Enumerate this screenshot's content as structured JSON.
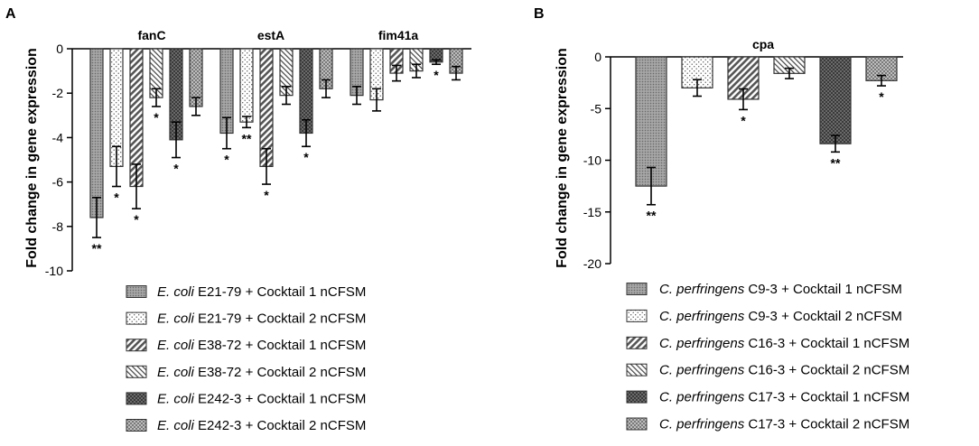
{
  "patterns": {
    "p1": {
      "name": "dense-dots",
      "fill": "#9a9a9a"
    },
    "p2": {
      "name": "sparse-dots",
      "fill": "#ffffff"
    },
    "p3": {
      "name": "thick-diagonal",
      "fill": "#ffffff"
    },
    "p4": {
      "name": "thin-diagonal",
      "fill": "#ffffff"
    },
    "p5": {
      "name": "dark-checker",
      "fill": "#3a3a3a"
    },
    "p6": {
      "name": "light-checker",
      "fill": "#bdbdbd"
    }
  },
  "chart_data": [
    {
      "panel": "A",
      "type": "bar",
      "title": "",
      "xlabel": "",
      "ylabel": "Fold change in gene expression",
      "ylim": [
        -10,
        0
      ],
      "yticks": [
        0,
        -2,
        -4,
        -6,
        -8,
        -10
      ],
      "groups": [
        {
          "label": "fanC",
          "values": [
            -7.6,
            -5.3,
            -6.2,
            -2.2,
            -4.1,
            -2.6
          ],
          "errors": [
            0.9,
            0.9,
            1.0,
            0.4,
            0.8,
            0.4
          ],
          "stars": [
            "**",
            "*",
            "*",
            "*",
            "*",
            ""
          ]
        },
        {
          "label": "estA",
          "values": [
            -3.8,
            -3.3,
            -5.3,
            -2.1,
            -3.8,
            -1.8
          ],
          "errors": [
            0.7,
            0.25,
            0.8,
            0.4,
            0.6,
            0.4
          ],
          "stars": [
            "*",
            "**",
            "*",
            "",
            "*",
            ""
          ]
        },
        {
          "label": "fim41a",
          "values": [
            -2.1,
            -2.3,
            -1.1,
            -1.0,
            -0.6,
            -1.1
          ],
          "errors": [
            0.4,
            0.5,
            0.35,
            0.3,
            0.1,
            0.3
          ],
          "stars": [
            "",
            "",
            "",
            "",
            "*",
            ""
          ]
        }
      ],
      "legend": [
        {
          "italic": "E. coli",
          "text": " E21-79 + Cocktail 1 nCFSM",
          "pattern": "p1"
        },
        {
          "italic": "E. coli",
          "text": " E21-79 + Cocktail 2 nCFSM",
          "pattern": "p2"
        },
        {
          "italic": "E. coli",
          "text": " E38-72 + Cocktail 1 nCFSM",
          "pattern": "p3"
        },
        {
          "italic": "E. coli",
          "text": " E38-72 + Cocktail 2 nCFSM",
          "pattern": "p4"
        },
        {
          "italic": "E. coli",
          "text": " E242-3 + Cocktail 1 nCFSM",
          "pattern": "p5"
        },
        {
          "italic": "E. coli",
          "text": " E242-3 + Cocktail 2 nCFSM",
          "pattern": "p6"
        }
      ]
    },
    {
      "panel": "B",
      "type": "bar",
      "title": "",
      "xlabel": "",
      "ylabel": "Fold change in gene expression",
      "ylim": [
        -20,
        0
      ],
      "yticks": [
        0,
        -5,
        -10,
        -15,
        -20
      ],
      "groups": [
        {
          "label": "cpa",
          "values": [
            -12.5,
            -3.0,
            -4.1,
            -1.6,
            -8.4,
            -2.3
          ],
          "errors": [
            1.8,
            0.8,
            1.0,
            0.5,
            0.8,
            0.5
          ],
          "stars": [
            "**",
            "",
            "*",
            "",
            "**",
            "*"
          ]
        }
      ],
      "legend": [
        {
          "italic": "C. perfringens",
          "text": " C9-3 + Cocktail 1 nCFSM",
          "pattern": "p1"
        },
        {
          "italic": "C. perfringens",
          "text": " C9-3 + Cocktail 2 nCFSM",
          "pattern": "p2"
        },
        {
          "italic": "C. perfringens",
          "text": " C16-3 + Cocktail 1 nCFSM",
          "pattern": "p3"
        },
        {
          "italic": "C. perfringens",
          "text": " C16-3 + Cocktail 2 nCFSM",
          "pattern": "p4"
        },
        {
          "italic": "C. perfringens",
          "text": " C17-3 + Cocktail 1 nCFSM",
          "pattern": "p5"
        },
        {
          "italic": "C. perfringens",
          "text": " C17-3 + Cocktail 2 nCFSM",
          "pattern": "p6"
        }
      ]
    }
  ]
}
